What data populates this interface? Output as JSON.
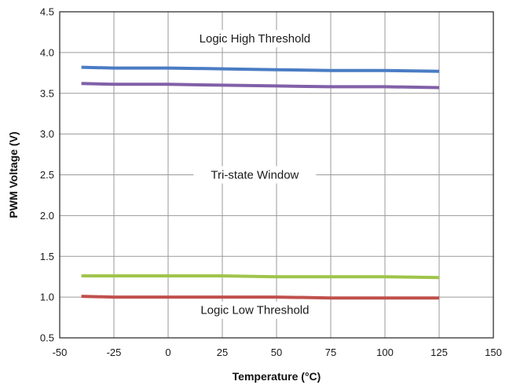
{
  "chart_data": {
    "type": "line",
    "title": "",
    "xlabel": "Temperature (°C)",
    "ylabel": "PWM Voltage (V)",
    "xlim": [
      -50,
      150
    ],
    "ylim": [
      0.5,
      4.5
    ],
    "xticks": [
      -50,
      -25,
      0,
      25,
      50,
      75,
      100,
      125,
      150
    ],
    "yticks": [
      0.5,
      1.0,
      1.5,
      2.0,
      2.5,
      3.0,
      3.5,
      4.0,
      4.5
    ],
    "xtick_labels": [
      "-50",
      "-25",
      "0",
      "25",
      "50",
      "75",
      "100",
      "125",
      "150"
    ],
    "ytick_labels": [
      "0.5",
      "1.0",
      "1.5",
      "2.0",
      "2.5",
      "3.0",
      "3.5",
      "4.0",
      "4.5"
    ],
    "grid": true,
    "legend": "none",
    "annotations": [
      {
        "text": "Logic High Threshold",
        "x": 40,
        "y": 4.17
      },
      {
        "text": "Tri-state Window",
        "x": 40,
        "y": 2.5
      },
      {
        "text": "Logic Low Threshold",
        "x": 40,
        "y": 0.84
      }
    ],
    "series": [
      {
        "color": "#4a7cc4",
        "x": [
          -40,
          -25,
          0,
          25,
          50,
          75,
          100,
          125
        ],
        "y": [
          3.82,
          3.81,
          3.81,
          3.8,
          3.79,
          3.78,
          3.78,
          3.77
        ]
      },
      {
        "color": "#8160a8",
        "x": [
          -40,
          -25,
          0,
          25,
          50,
          75,
          100,
          125
        ],
        "y": [
          3.62,
          3.61,
          3.61,
          3.6,
          3.59,
          3.58,
          3.58,
          3.57
        ]
      },
      {
        "color": "#9fc44a",
        "x": [
          -40,
          -25,
          0,
          25,
          50,
          75,
          100,
          125
        ],
        "y": [
          1.26,
          1.26,
          1.26,
          1.26,
          1.25,
          1.25,
          1.25,
          1.24
        ]
      },
      {
        "color": "#c0504d",
        "x": [
          -40,
          -25,
          0,
          25,
          50,
          75,
          100,
          125
        ],
        "y": [
          1.01,
          1.0,
          1.0,
          1.0,
          1.0,
          0.99,
          0.99,
          0.99
        ]
      }
    ]
  }
}
